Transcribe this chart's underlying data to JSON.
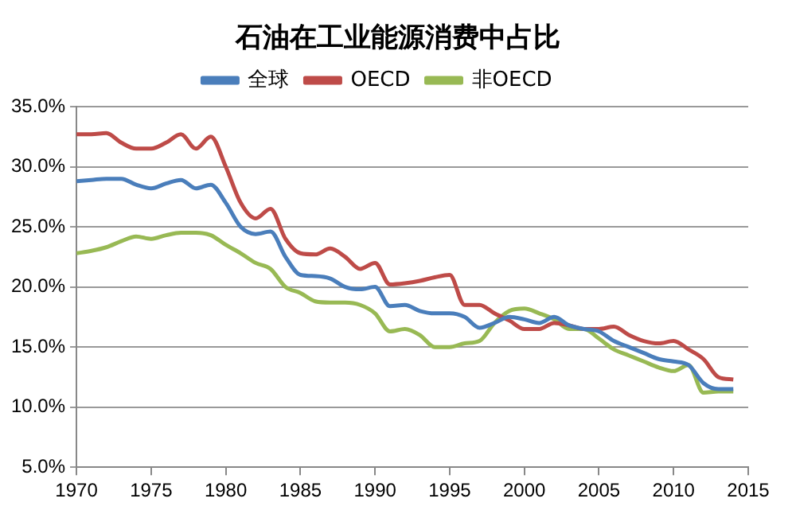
{
  "chart_data": {
    "type": "line",
    "title": "石油在工业能源消费中占比",
    "x": [
      1970,
      1971,
      1972,
      1973,
      1974,
      1975,
      1976,
      1977,
      1978,
      1979,
      1980,
      1981,
      1982,
      1983,
      1984,
      1985,
      1986,
      1987,
      1988,
      1989,
      1990,
      1991,
      1992,
      1993,
      1994,
      1995,
      1996,
      1997,
      1998,
      1999,
      2000,
      2001,
      2002,
      2003,
      2004,
      2005,
      2006,
      2007,
      2008,
      2009,
      2010,
      2011,
      2012,
      2013,
      2014
    ],
    "series": [
      {
        "name": "全球",
        "color": "#4a7ebb",
        "values": [
          28.8,
          28.9,
          29.0,
          29.0,
          28.5,
          28.2,
          28.6,
          28.9,
          28.2,
          28.5,
          27.0,
          25.0,
          24.4,
          24.6,
          22.5,
          21.0,
          20.9,
          20.7,
          20.0,
          19.8,
          20.0,
          18.4,
          18.5,
          18.0,
          17.8,
          17.8,
          17.5,
          16.6,
          17.0,
          17.5,
          17.3,
          17.0,
          17.5,
          16.8,
          16.5,
          16.3,
          15.5,
          15.0,
          14.5,
          14.0,
          13.8,
          13.5,
          12.0,
          11.5,
          11.5
        ]
      },
      {
        "name": "OECD",
        "color": "#be4b48",
        "values": [
          32.7,
          32.7,
          32.8,
          32.0,
          31.5,
          31.5,
          32.0,
          32.7,
          31.5,
          32.5,
          30.0,
          27.0,
          25.7,
          26.5,
          24.0,
          22.8,
          22.7,
          23.2,
          22.5,
          21.5,
          22.0,
          20.2,
          20.3,
          20.5,
          20.8,
          21.0,
          18.5,
          18.5,
          17.8,
          17.2,
          16.5,
          16.5,
          17.0,
          16.8,
          16.5,
          16.5,
          16.7,
          16.0,
          15.5,
          15.3,
          15.5,
          14.8,
          14.0,
          12.5,
          12.3
        ]
      },
      {
        "name": "非OECD",
        "color": "#98b954",
        "values": [
          22.8,
          23.0,
          23.3,
          23.8,
          24.2,
          24.0,
          24.3,
          24.5,
          24.5,
          24.3,
          23.5,
          22.8,
          22.0,
          21.5,
          20.0,
          19.5,
          18.8,
          18.7,
          18.7,
          18.5,
          17.8,
          16.3,
          16.5,
          16.0,
          15.0,
          15.0,
          15.3,
          15.5,
          17.0,
          18.0,
          18.2,
          17.8,
          17.3,
          16.5,
          16.5,
          15.7,
          14.8,
          14.3,
          13.8,
          13.3,
          13.0,
          13.5,
          11.2,
          11.3,
          11.3
        ]
      }
    ],
    "xlim": [
      1970,
      2015
    ],
    "xticks": [
      1970,
      1975,
      1980,
      1985,
      1990,
      1995,
      2000,
      2005,
      2010,
      2015
    ],
    "ylim": [
      5,
      35
    ],
    "yticks": [
      {
        "value": 5,
        "label": "5.0%"
      },
      {
        "value": 10,
        "label": "10.0%"
      },
      {
        "value": 15,
        "label": "15.0%"
      },
      {
        "value": 20,
        "label": "20.0%"
      },
      {
        "value": 25,
        "label": "25.0%"
      },
      {
        "value": 30,
        "label": "30.0%"
      },
      {
        "value": 35,
        "label": "35.0%"
      }
    ],
    "grid": "y",
    "legend": "top",
    "marker": "none",
    "line_style": "solid"
  }
}
